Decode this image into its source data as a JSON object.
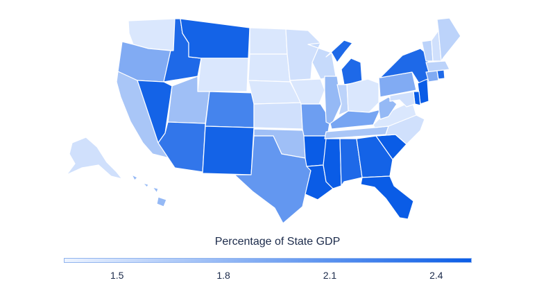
{
  "map": {
    "type": "choropleth",
    "region": "United States",
    "colors": {
      "low": "#eef4ff",
      "high": "#0a5ce6"
    },
    "states": [
      {
        "id": "WA",
        "value": 1.45
      },
      {
        "id": "OR",
        "value": 1.9
      },
      {
        "id": "CA",
        "value": 1.7
      },
      {
        "id": "NV",
        "value": 2.45
      },
      {
        "id": "ID",
        "value": 2.4
      },
      {
        "id": "MT",
        "value": 2.45
      },
      {
        "id": "WY",
        "value": 1.45
      },
      {
        "id": "UT",
        "value": 1.75
      },
      {
        "id": "AZ",
        "value": 2.3
      },
      {
        "id": "CO",
        "value": 2.2
      },
      {
        "id": "NM",
        "value": 2.45
      },
      {
        "id": "ND",
        "value": 1.45
      },
      {
        "id": "SD",
        "value": 1.45
      },
      {
        "id": "NE",
        "value": 1.45
      },
      {
        "id": "KS",
        "value": 1.5
      },
      {
        "id": "OK",
        "value": 1.75
      },
      {
        "id": "TX",
        "value": 2.05
      },
      {
        "id": "MN",
        "value": 1.5
      },
      {
        "id": "IA",
        "value": 1.45
      },
      {
        "id": "MO",
        "value": 2.0
      },
      {
        "id": "AR",
        "value": 2.5
      },
      {
        "id": "LA",
        "value": 2.5
      },
      {
        "id": "WI",
        "value": 1.55
      },
      {
        "id": "IL",
        "value": 1.8
      },
      {
        "id": "MI",
        "value": 2.4
      },
      {
        "id": "IN",
        "value": 1.6
      },
      {
        "id": "OH",
        "value": 1.45
      },
      {
        "id": "KY",
        "value": 1.95
      },
      {
        "id": "TN",
        "value": 1.7
      },
      {
        "id": "MS",
        "value": 2.5
      },
      {
        "id": "AL",
        "value": 2.4
      },
      {
        "id": "GA",
        "value": 2.45
      },
      {
        "id": "FL",
        "value": 2.5
      },
      {
        "id": "SC",
        "value": 2.5
      },
      {
        "id": "NC",
        "value": 1.5
      },
      {
        "id": "VA",
        "value": 1.45
      },
      {
        "id": "WV",
        "value": 1.8
      },
      {
        "id": "PA",
        "value": 1.9
      },
      {
        "id": "NY",
        "value": 2.4
      },
      {
        "id": "VT",
        "value": 1.6
      },
      {
        "id": "NH",
        "value": 1.5
      },
      {
        "id": "ME",
        "value": 1.6
      },
      {
        "id": "MA",
        "value": 1.6
      },
      {
        "id": "CT",
        "value": 1.9
      },
      {
        "id": "RI",
        "value": 2.4
      },
      {
        "id": "NJ",
        "value": 2.5
      },
      {
        "id": "DE",
        "value": 2.5
      },
      {
        "id": "MD",
        "value": 1.5
      },
      {
        "id": "AK",
        "value": 1.5
      },
      {
        "id": "HI",
        "value": 1.8
      }
    ]
  },
  "legend": {
    "title": "Percentage of State GDP",
    "min": 1.35,
    "max": 2.5,
    "ticks": [
      {
        "label": "1.5",
        "value": 1.5
      },
      {
        "label": "1.8",
        "value": 1.8
      },
      {
        "label": "2.1",
        "value": 2.1
      },
      {
        "label": "2.4",
        "value": 2.4
      }
    ]
  }
}
